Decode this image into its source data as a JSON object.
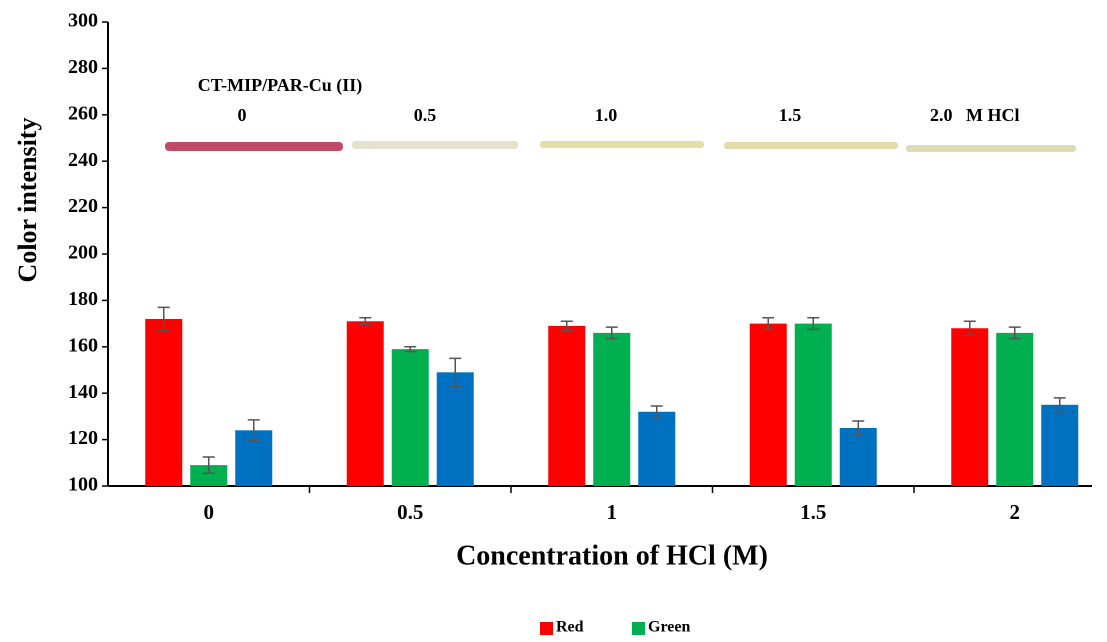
{
  "chart_data": {
    "type": "bar",
    "x_label": "Concentration of HCl (M)",
    "y_label": "Color intensity",
    "categories": [
      "0",
      "0.5",
      "1",
      "1.5",
      "2"
    ],
    "series": [
      {
        "name": "Red",
        "color": "#ff0000",
        "values": [
          172,
          171,
          169,
          170,
          168
        ],
        "errors": [
          5,
          1.5,
          2,
          2.5,
          3
        ]
      },
      {
        "name": "Green",
        "color": "#00b050",
        "values": [
          109,
          159,
          166,
          170,
          166
        ],
        "errors": [
          3.5,
          1,
          2.5,
          2.5,
          2.5
        ]
      },
      {
        "color": "#0070c0",
        "values": [
          124,
          149,
          132,
          125,
          135
        ],
        "errors": [
          4.5,
          6,
          2.5,
          3,
          3
        ]
      }
    ],
    "ylim": [
      100,
      300
    ],
    "yticks": [
      100,
      120,
      140,
      160,
      180,
      200,
      220,
      240,
      260,
      280,
      300
    ],
    "grid": false,
    "legend": "bottom",
    "annotations": [
      "CT-MIP/PAR-Cu (II)",
      "0",
      "0.5",
      "1.0",
      "1.5",
      "2.0   M HCl"
    ]
  }
}
